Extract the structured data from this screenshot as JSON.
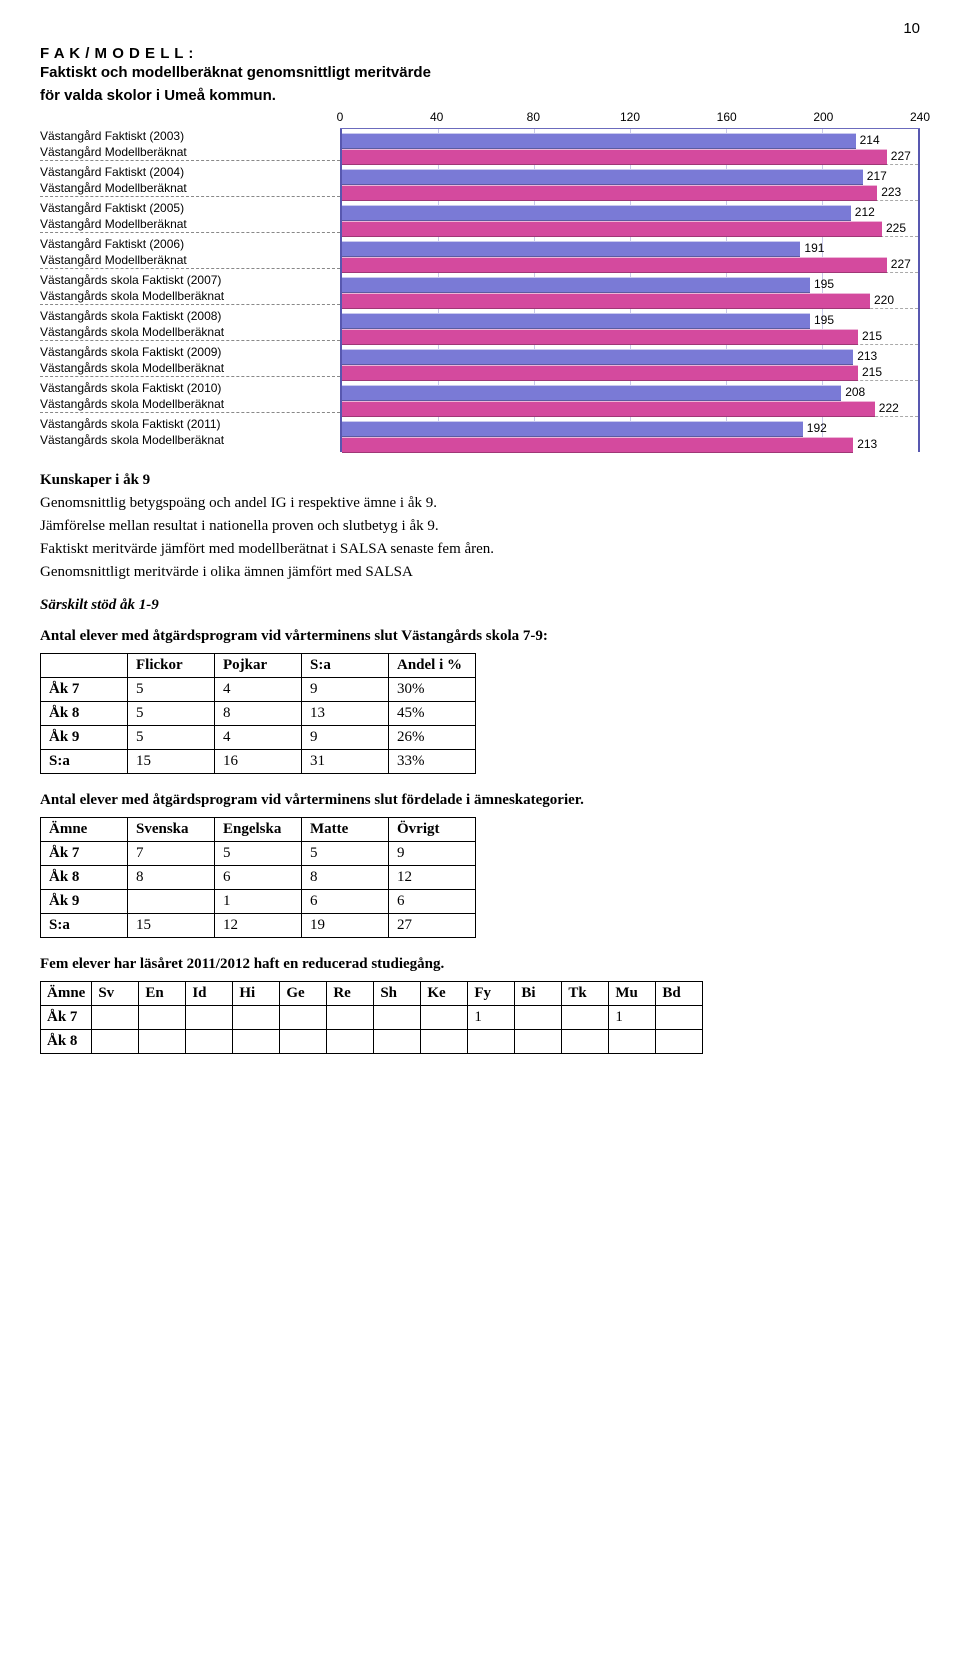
{
  "page_number": "10",
  "chart": {
    "title_line1": "F A K / M O D E L L :",
    "title_line2": "Faktiskt och modellberäknat genomsnittligt meritvärde",
    "title_line3": "för valda skolor i Umeå kommun.",
    "x_min": 0,
    "x_max": 240,
    "x_ticks": [
      "0",
      "40",
      "80",
      "120",
      "160",
      "200",
      "240"
    ],
    "faktiskt_color": "#7a7ad6",
    "modell_color": "#d44a9e",
    "border_color": "#5858b0",
    "grid_color": "#c8c8e8",
    "rows": [
      {
        "fakt_label": "Västangård Faktiskt (2003)",
        "mod_label": "Västangård Modellberäknat",
        "fakt": 214,
        "mod": 227
      },
      {
        "fakt_label": "Västangård Faktiskt (2004)",
        "mod_label": "Västangård Modellberäknat",
        "fakt": 217,
        "mod": 223
      },
      {
        "fakt_label": "Västangård Faktiskt (2005)",
        "mod_label": "Västangård Modellberäknat",
        "fakt": 212,
        "mod": 225
      },
      {
        "fakt_label": "Västangård Faktiskt (2006)",
        "mod_label": "Västangård Modellberäknat",
        "fakt": 191,
        "mod": 227
      },
      {
        "fakt_label": "Västangårds skola Faktiskt (2007)",
        "mod_label": "Västangårds skola Modellberäknat",
        "fakt": 195,
        "mod": 220
      },
      {
        "fakt_label": "Västangårds skola Faktiskt (2008)",
        "mod_label": "Västangårds skola Modellberäknat",
        "fakt": 195,
        "mod": 215
      },
      {
        "fakt_label": "Västangårds skola Faktiskt (2009)",
        "mod_label": "Västangårds skola Modellberäknat",
        "fakt": 213,
        "mod": 215
      },
      {
        "fakt_label": "Västangårds skola Faktiskt (2010)",
        "mod_label": "Västangårds skola Modellberäknat",
        "fakt": 208,
        "mod": 222
      },
      {
        "fakt_label": "Västangårds skola Faktiskt (2011)",
        "mod_label": "Västangårds skola Modellberäknat",
        "fakt": 192,
        "mod": 213
      }
    ]
  },
  "section1": {
    "heading": "Kunskaper i åk 9",
    "l1": "Genomsnittlig betygspoäng och andel IG i respektive ämne i åk 9.",
    "l2": "Jämförelse mellan resultat i nationella proven och slutbetyg i åk 9.",
    "l3": "Faktiskt meritvärde jämfört med modellberätnat i SALSA senaste fem åren.",
    "l4": "Genomsnittligt meritvärde i olika ämnen jämfört med SALSA"
  },
  "section2": {
    "heading": "Särskilt stöd åk 1-9",
    "intro": "Antal elever med åtgärdsprogram vid vårterminens slut Västangårds skola 7-9:"
  },
  "table1": {
    "headers": [
      "",
      "Flickor",
      "Pojkar",
      "S:a",
      "Andel i %"
    ],
    "rows": [
      [
        "Åk 7",
        "5",
        "4",
        "9",
        "30%"
      ],
      [
        "Åk 8",
        "5",
        "8",
        "13",
        "45%"
      ],
      [
        "Åk 9",
        "5",
        "4",
        "9",
        "26%"
      ],
      [
        "S:a",
        "15",
        "16",
        "31",
        "33%"
      ]
    ]
  },
  "section3": {
    "intro": "Antal elever med åtgärdsprogram vid vårterminens slut fördelade i ämneskategorier."
  },
  "table2": {
    "headers": [
      "Ämne",
      "Svenska",
      "Engelska",
      "Matte",
      "Övrigt"
    ],
    "rows": [
      [
        "Åk 7",
        "7",
        "5",
        "5",
        "9"
      ],
      [
        "Åk 8",
        "8",
        "6",
        "8",
        "12"
      ],
      [
        "Åk 9",
        "",
        "1",
        "6",
        "6"
      ],
      [
        "S:a",
        "15",
        "12",
        "19",
        "27"
      ]
    ]
  },
  "section4": {
    "note": "Fem elever har läsåret 2011/2012 haft en reducerad studiegång."
  },
  "table3": {
    "headers": [
      "Ämne",
      "Sv",
      "En",
      "Id",
      "Hi",
      "Ge",
      "Re",
      "Sh",
      "Ke",
      "Fy",
      "Bi",
      "Tk",
      "Mu",
      "Bd"
    ],
    "rows": [
      [
        "Åk 7",
        "",
        "",
        "",
        "",
        "",
        "",
        "",
        "",
        "1",
        "",
        "",
        "1",
        ""
      ],
      [
        "Åk 8",
        "",
        "",
        "",
        "",
        "",
        "",
        "",
        "",
        "",
        "",
        "",
        "",
        ""
      ]
    ]
  }
}
